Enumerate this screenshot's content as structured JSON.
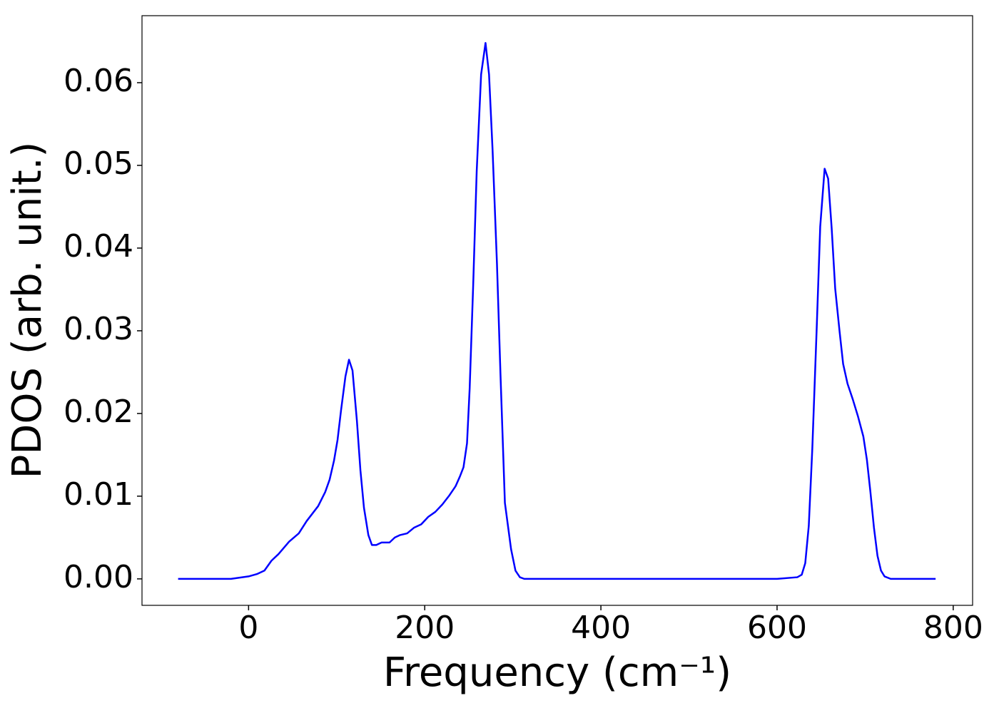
{
  "chart_data": {
    "type": "line",
    "xlabel": "Frequency (cm⁻¹)",
    "ylabel": "PDOS (arb. unit.)",
    "x": [
      -80,
      -20,
      0,
      10,
      18,
      26,
      34,
      46,
      57,
      66,
      79,
      87,
      92,
      97,
      101,
      105,
      110,
      114,
      118,
      123,
      127,
      131,
      136,
      140,
      145,
      151,
      160,
      166,
      172,
      180,
      188,
      196,
      204,
      212,
      220,
      228,
      235,
      240,
      244,
      248,
      251,
      255,
      259,
      264,
      269,
      273,
      277,
      282,
      286,
      291,
      298,
      303,
      308,
      313,
      400,
      500,
      600,
      623,
      628,
      632,
      636,
      640,
      645,
      649,
      654,
      658,
      662,
      666,
      671,
      675,
      680,
      686,
      692,
      698,
      702,
      706,
      710,
      714,
      718,
      722,
      729,
      780
    ],
    "values": [
      0,
      0,
      0.0003,
      0.0006,
      0.001,
      0.0022,
      0.003,
      0.0045,
      0.0055,
      0.007,
      0.0088,
      0.0105,
      0.012,
      0.0143,
      0.0168,
      0.0204,
      0.0245,
      0.0265,
      0.0252,
      0.0191,
      0.0131,
      0.0086,
      0.0053,
      0.0041,
      0.0041,
      0.0044,
      0.0044,
      0.005,
      0.0053,
      0.0055,
      0.0062,
      0.0066,
      0.0075,
      0.0081,
      0.009,
      0.0101,
      0.0112,
      0.0124,
      0.0135,
      0.0164,
      0.023,
      0.0355,
      0.0493,
      0.061,
      0.0648,
      0.061,
      0.0519,
      0.0381,
      0.0247,
      0.0092,
      0.0036,
      0.001,
      0.0002,
      0,
      0,
      0,
      0,
      0.0002,
      0.0005,
      0.0019,
      0.0064,
      0.0157,
      0.0303,
      0.0426,
      0.0496,
      0.0484,
      0.0424,
      0.0351,
      0.0299,
      0.026,
      0.0236,
      0.0217,
      0.0196,
      0.0172,
      0.0144,
      0.0105,
      0.0062,
      0.0028,
      0.001,
      0.0003,
      0,
      0
    ],
    "color": "#0000ff",
    "xlim": [
      -121,
      822
    ],
    "xticks": [
      0,
      200,
      400,
      600,
      800
    ],
    "ylim": [
      -0.0032,
      0.0681
    ],
    "yticks": [
      {
        "value": 0,
        "label": "0.00"
      },
      0.01,
      0.02,
      0.03,
      0.04,
      0.05,
      0.06
    ]
  }
}
